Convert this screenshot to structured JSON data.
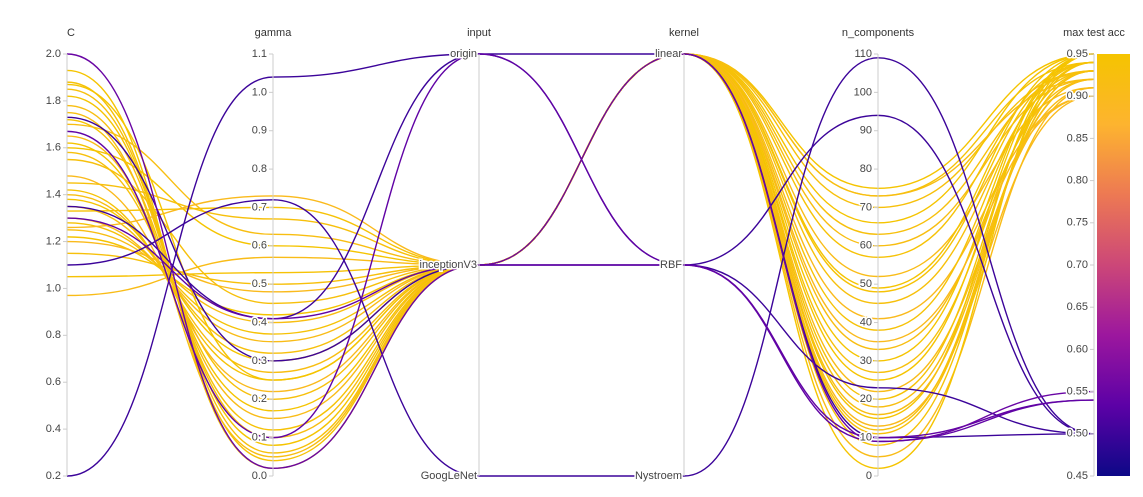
{
  "chart_data": {
    "type": "parallel",
    "colorscale": [
      "#0d0887",
      "#5c01a6",
      "#9c179e",
      "#cc4778",
      "#ed7953",
      "#fdb42f",
      "#f5c400"
    ],
    "dimensions": [
      {
        "label": "C",
        "range": [
          0.2,
          2.0
        ],
        "ticks": [
          0.2,
          0.4,
          0.6,
          0.8,
          {
            "value": 1,
            "label": "1.0"
          },
          1.2,
          1.4,
          1.6,
          1.8,
          {
            "value": 2,
            "label": "2.0"
          }
        ],
        "values": [
          1.93,
          1.88,
          1.85,
          1.82,
          1.78,
          1.72,
          1.65,
          1.62,
          1.58,
          1.48,
          1.42,
          1.4,
          1.38,
          1.35,
          1.3,
          1.28,
          1.25,
          1.22,
          1.2,
          1.15,
          1.05,
          0.97,
          1.6,
          1.7,
          1.45,
          1.33,
          1.26,
          1.87,
          1.75,
          1.55,
          0.2,
          1.1,
          1.35,
          1.73,
          1.67,
          2.0,
          1.3
        ]
      },
      {
        "label": "gamma",
        "range": [
          0,
          1.1
        ],
        "ticks": [
          {
            "value": 0,
            "label": "0.0"
          },
          0.1,
          0.2,
          0.3,
          0.4,
          0.5,
          0.6,
          0.7,
          0.8,
          0.9,
          {
            "value": 1,
            "label": "1.0"
          },
          1.1
        ],
        "values": [
          0.02,
          0.04,
          0.06,
          0.08,
          0.1,
          0.12,
          0.15,
          0.17,
          0.2,
          0.22,
          0.25,
          0.27,
          0.3,
          0.32,
          0.35,
          0.37,
          0.4,
          0.42,
          0.48,
          0.5,
          0.53,
          0.57,
          0.6,
          0.63,
          0.67,
          0.7,
          0.73,
          0.25,
          0.05,
          0.45,
          1.04,
          0.72,
          0.41,
          0.3,
          0.1,
          0.02,
          0.41
        ]
      },
      {
        "label": "input",
        "categories": [
          "origin",
          "inceptionV3",
          "GoogLeNet"
        ],
        "values": [
          "inceptionV3",
          "inceptionV3",
          "inceptionV3",
          "inceptionV3",
          "inceptionV3",
          "inceptionV3",
          "inceptionV3",
          "inceptionV3",
          "inceptionV3",
          "inceptionV3",
          "inceptionV3",
          "inceptionV3",
          "inceptionV3",
          "inceptionV3",
          "inceptionV3",
          "inceptionV3",
          "inceptionV3",
          "inceptionV3",
          "inceptionV3",
          "inceptionV3",
          "inceptionV3",
          "inceptionV3",
          "inceptionV3",
          "inceptionV3",
          "inceptionV3",
          "inceptionV3",
          "inceptionV3",
          "inceptionV3",
          "inceptionV3",
          "inceptionV3",
          "origin",
          "GoogLeNet",
          "origin",
          "inceptionV3",
          "origin",
          "inceptionV3",
          "inceptionV3"
        ]
      },
      {
        "label": "kernel",
        "categories": [
          "linear",
          "RBF",
          "Nystroem"
        ],
        "values": [
          "linear",
          "linear",
          "linear",
          "linear",
          "linear",
          "linear",
          "linear",
          "linear",
          "linear",
          "linear",
          "linear",
          "linear",
          "linear",
          "linear",
          "linear",
          "linear",
          "linear",
          "linear",
          "linear",
          "linear",
          "linear",
          "linear",
          "linear",
          "linear",
          "linear",
          "linear",
          "linear",
          "linear",
          "linear",
          "linear",
          "linear",
          "Nystroem",
          "RBF",
          "RBF",
          "RBF",
          "linear",
          "RBF"
        ]
      },
      {
        "label": "n_components",
        "range": [
          0,
          110
        ],
        "ticks": [
          0,
          10,
          20,
          30,
          40,
          50,
          60,
          70,
          80,
          90,
          100,
          110
        ],
        "values": [
          75,
          73,
          70,
          66,
          60,
          57,
          52,
          49,
          45,
          41,
          38,
          33,
          30,
          27,
          22,
          20,
          18,
          15,
          13,
          11,
          8,
          5,
          2,
          73,
          63,
          48,
          35,
          25,
          16,
          12,
          10,
          109,
          94,
          23,
          10,
          9,
          9
        ]
      },
      {
        "label": "max test acc",
        "range": [
          0.45,
          0.95
        ],
        "ticks": [
          0.45,
          {
            "value": 0.5,
            "label": "0.50"
          },
          0.55,
          {
            "value": 0.6,
            "label": "0.60"
          },
          0.65,
          {
            "value": 0.7,
            "label": "0.70"
          },
          0.75,
          {
            "value": 0.8,
            "label": "0.80"
          },
          0.85,
          {
            "value": 0.9,
            "label": "0.90"
          },
          0.95
        ],
        "values": [
          0.95,
          0.94,
          0.93,
          0.95,
          0.92,
          0.94,
          0.91,
          0.95,
          0.93,
          0.9,
          0.94,
          0.92,
          0.95,
          0.93,
          0.91,
          0.94,
          0.92,
          0.95,
          0.9,
          0.93,
          0.94,
          0.91,
          0.95,
          0.92,
          0.93,
          0.94,
          0.9,
          0.95,
          0.92,
          0.93,
          0.5,
          0.5,
          0.5,
          0.5,
          0.54,
          0.55,
          0.54
        ]
      }
    ]
  }
}
